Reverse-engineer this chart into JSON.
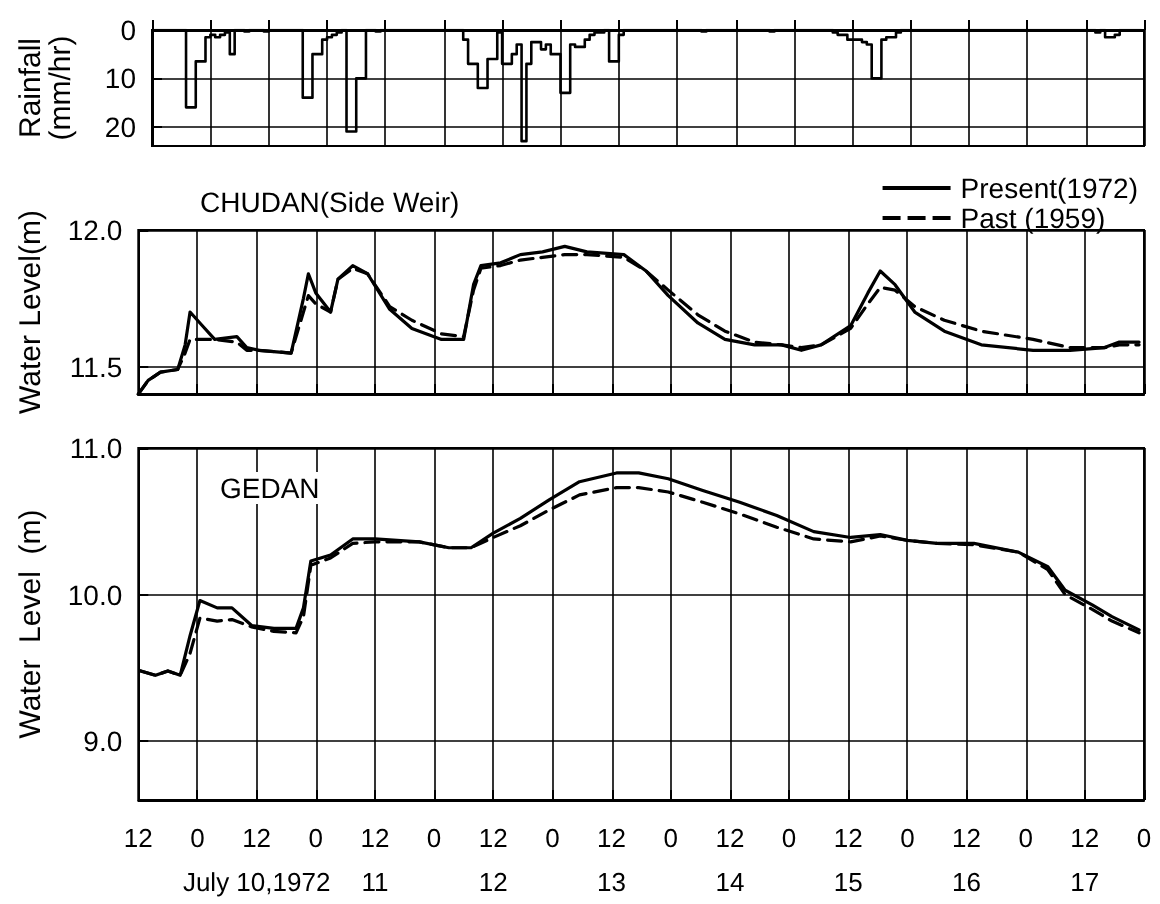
{
  "chart_data": [
    {
      "type": "step",
      "ylabel": "Rainfall\n(mm/hr)",
      "color": "#000000",
      "tick_labels": "y",
      "grid": true,
      "ylim": [
        24,
        0
      ],
      "yticks": [
        0,
        10,
        20
      ],
      "categories": [
        null,
        null,
        null,
        null,
        null,
        null,
        null,
        null,
        null,
        null,
        null,
        null,
        null,
        null,
        null,
        null,
        null,
        null,
        null,
        null,
        null,
        null,
        null,
        null,
        null,
        null,
        null,
        null,
        null,
        null,
        null,
        null,
        null,
        null,
        null,
        null,
        null,
        null,
        null,
        null,
        null,
        null,
        null,
        null,
        null,
        null,
        null,
        null,
        null,
        null,
        null,
        null,
        null,
        null,
        null,
        null,
        null,
        null,
        null,
        null,
        null,
        null,
        null,
        null,
        null,
        null,
        null,
        null,
        null,
        null,
        null,
        null,
        null,
        null,
        null,
        null,
        null,
        null,
        null,
        null,
        null,
        null,
        null,
        null,
        null,
        null,
        null,
        null,
        null,
        null,
        null,
        null,
        null,
        null,
        null,
        null,
        null,
        null,
        null,
        null,
        null,
        null,
        null,
        null,
        null,
        null,
        null,
        null,
        null,
        null,
        null,
        null,
        null,
        null,
        null,
        null,
        null,
        null,
        null,
        null,
        null,
        null,
        null,
        null,
        null,
        null,
        null,
        null,
        null,
        null,
        null,
        null,
        null,
        null,
        null,
        null,
        null,
        null,
        null,
        null,
        null,
        null,
        null,
        null,
        null,
        null,
        null,
        null,
        null,
        null,
        null,
        null,
        null,
        null,
        null,
        null,
        null,
        null,
        null,
        null,
        null,
        null,
        null,
        null,
        null,
        null,
        null,
        null,
        null,
        null,
        null,
        null,
        null,
        null,
        null,
        null,
        null,
        null,
        null,
        null,
        null,
        null,
        null,
        null,
        null,
        null,
        null,
        null,
        null,
        null,
        null,
        null,
        null,
        null,
        null,
        null,
        null,
        null,
        null,
        null,
        null,
        null,
        null,
        null
      ],
      "values": [
        0,
        0,
        0,
        0,
        0,
        0,
        0,
        16,
        16,
        6.5,
        6.5,
        1.5,
        1,
        1.5,
        1,
        0.5,
        5,
        0,
        0,
        0.3,
        0,
        0,
        0,
        0.3,
        0,
        0,
        0,
        0,
        0,
        0,
        0,
        14,
        14,
        5,
        5,
        2,
        1.5,
        1,
        0.5,
        0,
        21,
        21,
        10,
        10,
        0,
        0,
        0.3,
        0,
        0,
        0,
        0,
        0,
        0,
        0,
        0,
        0,
        0,
        0,
        0,
        0,
        0,
        0,
        0,
        0,
        2,
        7,
        7,
        12,
        12,
        6,
        6,
        0.5,
        7,
        7,
        5,
        3,
        23,
        7,
        2.5,
        2.5,
        4,
        3,
        5,
        5,
        13,
        13,
        3,
        3.5,
        3.5,
        2,
        1,
        0.5,
        0.5,
        0,
        6.5,
        6.5,
        1,
        0,
        0,
        0,
        0,
        0,
        0,
        0,
        0,
        0,
        0,
        0,
        0,
        0,
        0,
        0,
        0,
        0.3,
        0,
        0,
        0,
        0,
        0,
        0,
        0,
        0,
        0,
        0,
        0,
        0,
        0,
        0.3,
        0,
        0,
        0,
        0,
        0,
        0,
        0,
        0,
        0,
        0,
        0,
        0,
        0.5,
        1,
        1,
        2,
        2,
        2,
        2.5,
        3,
        10,
        10,
        2,
        1.5,
        1.5,
        0.5,
        0,
        0,
        0,
        0,
        0,
        0,
        0,
        0,
        0,
        0,
        0,
        0,
        0,
        0,
        0,
        0,
        0,
        0,
        0,
        0,
        0,
        0,
        0,
        0,
        0,
        0,
        0,
        0,
        0,
        0,
        0,
        0,
        0,
        0,
        0,
        0,
        0,
        0,
        0,
        0,
        0.5,
        0,
        1.5,
        1.5,
        1,
        0,
        0,
        0,
        0,
        0
      ]
    },
    {
      "type": "line",
      "title": "CHUDAN(Side Weir)",
      "ylabel": "Water Level(m)",
      "legend": "top right",
      "marker": "none",
      "tick_labels": "y",
      "grid": true,
      "xlim": [
        "1972-07-09T12:00",
        "1972-07-18T00:00"
      ],
      "ylim": [
        11.4,
        12.0
      ],
      "yticks": [
        {
          "value": 11.5,
          "label": "11.5"
        },
        {
          "value": 12,
          "label": "12.0"
        }
      ],
      "xticks": [
        "1972-07-09T12:00",
        "1972-07-10T00:00",
        "1972-07-10T12:00",
        "1972-07-11T00:00",
        "1972-07-11T12:00",
        "1972-07-12T00:00",
        "1972-07-12T12:00",
        "1972-07-13T00:00",
        "1972-07-13T12:00",
        "1972-07-14T00:00",
        "1972-07-14T12:00",
        "1972-07-15T00:00",
        "1972-07-15T12:00",
        "1972-07-16T00:00",
        "1972-07-16T12:00",
        "1972-07-17T00:00",
        "1972-07-17T12:00",
        "1972-07-18T00:00"
      ],
      "x": [
        "1972-07-09T12:00",
        "1972-07-09T14:00",
        "1972-07-09T16:30",
        "1972-07-09T20:00",
        "1972-07-09T21:30",
        "1972-07-09T22:30",
        "1972-07-10T01:00",
        "1972-07-10T03:30",
        "1972-07-10T08:00",
        "1972-07-10T10:00",
        "1972-07-10T12:30",
        "1972-07-10T19:00",
        "1972-07-10T21:30",
        "1972-07-10T22:30",
        "1972-07-11T00:00",
        "1972-07-11T03:00",
        "1972-07-11T04:30",
        "1972-07-11T07:30",
        "1972-07-11T10:30",
        "1972-07-11T15:00",
        "1972-07-11T19:30",
        "1972-07-12T01:30",
        "1972-07-12T06:00",
        "1972-07-12T08:00",
        "1972-07-12T09:30",
        "1972-07-12T13:30",
        "1972-07-12T17:30",
        "1972-07-12T22:00",
        "1972-07-13T02:30",
        "1972-07-13T07:00",
        "1972-07-13T14:30",
        "1972-07-13T19:00",
        "1972-07-13T23:30",
        "1972-07-14T05:30",
        "1972-07-14T11:00",
        "1972-07-14T17:00",
        "1972-07-14T22:30",
        "1972-07-15T02:30",
        "1972-07-15T06:30",
        "1972-07-15T12:30",
        "1972-07-15T16:00",
        "1972-07-15T18:30",
        "1972-07-15T21:30",
        "1972-07-16T01:30",
        "1972-07-16T07:30",
        "1972-07-16T15:00",
        "1972-07-17T01:30",
        "1972-07-17T09:00",
        "1972-07-17T16:00",
        "1972-07-17T19:00",
        "1972-07-17T23:00"
      ],
      "series": [
        {
          "name": "Present(1972)",
          "color": "#000000",
          "line_style": "solid",
          "values": [
            11.4,
            11.45,
            11.48,
            11.49,
            11.58,
            11.7,
            11.65,
            11.6,
            11.61,
            11.57,
            11.56,
            11.55,
            11.75,
            11.84,
            11.77,
            11.7,
            11.82,
            11.87,
            11.84,
            11.71,
            11.64,
            11.6,
            11.6,
            11.8,
            11.87,
            11.88,
            11.91,
            11.92,
            11.94,
            11.92,
            11.91,
            11.85,
            11.76,
            11.66,
            11.6,
            11.58,
            11.58,
            11.56,
            11.58,
            11.65,
            11.77,
            11.85,
            11.8,
            11.7,
            11.63,
            11.58,
            11.56,
            11.56,
            11.57,
            11.59,
            11.59
          ]
        },
        {
          "name": "Past (1959)",
          "color": "#000000",
          "line_style": "dashed",
          "values": [
            11.4,
            11.45,
            11.48,
            11.49,
            11.55,
            11.6,
            11.6,
            11.6,
            11.59,
            11.56,
            11.56,
            11.55,
            11.7,
            11.76,
            11.73,
            11.7,
            11.82,
            11.86,
            11.84,
            11.72,
            11.67,
            11.62,
            11.61,
            11.78,
            11.86,
            11.87,
            11.89,
            11.9,
            11.91,
            11.91,
            11.9,
            11.85,
            11.78,
            11.69,
            11.63,
            11.59,
            11.58,
            11.57,
            11.58,
            11.64,
            11.73,
            11.79,
            11.78,
            11.72,
            11.67,
            11.63,
            11.6,
            11.57,
            11.57,
            11.58,
            11.58
          ]
        }
      ]
    },
    {
      "type": "line",
      "title": "GEDAN",
      "ylabel": "Water  Level  (m)",
      "marker": "none",
      "grid": true,
      "xlim": [
        "1972-07-09T12:00",
        "1972-07-18T00:00"
      ],
      "ylim": [
        8.6,
        11.0
      ],
      "yticks": [
        {
          "value": 9,
          "label": "9.0"
        },
        {
          "value": 10,
          "label": "10.0"
        },
        {
          "value": 11,
          "label": "11.0"
        }
      ],
      "xticks": [
        {
          "value": "1972-07-09T12:00",
          "label": "12"
        },
        {
          "value": "1972-07-10T00:00",
          "label": "0"
        },
        {
          "value": "1972-07-10T12:00",
          "label": "12\nJuly 10,1972"
        },
        {
          "value": "1972-07-11T00:00",
          "label": "0"
        },
        {
          "value": "1972-07-11T12:00",
          "label": "12\n11"
        },
        {
          "value": "1972-07-12T00:00",
          "label": "0"
        },
        {
          "value": "1972-07-12T12:00",
          "label": "12\n12"
        },
        {
          "value": "1972-07-13T00:00",
          "label": "0"
        },
        {
          "value": "1972-07-13T12:00",
          "label": "12\n13"
        },
        {
          "value": "1972-07-14T00:00",
          "label": "0"
        },
        {
          "value": "1972-07-14T12:00",
          "label": "12\n14"
        },
        {
          "value": "1972-07-15T00:00",
          "label": "0"
        },
        {
          "value": "1972-07-15T12:00",
          "label": "12\n15"
        },
        {
          "value": "1972-07-16T00:00",
          "label": "0"
        },
        {
          "value": "1972-07-16T12:00",
          "label": "12\n16"
        },
        {
          "value": "1972-07-17T00:00",
          "label": "0"
        },
        {
          "value": "1972-07-17T12:00",
          "label": "12\n17"
        },
        {
          "value": "1972-07-18T00:00",
          "label": "0"
        }
      ],
      "x": [
        "1972-07-09T12:30",
        "1972-07-09T15:30",
        "1972-07-09T18:00",
        "1972-07-09T20:30",
        "1972-07-09T22:30",
        "1972-07-10T00:30",
        "1972-07-10T04:00",
        "1972-07-10T07:00",
        "1972-07-10T11:00",
        "1972-07-10T15:30",
        "1972-07-10T20:00",
        "1972-07-10T21:30",
        "1972-07-10T23:00",
        "1972-07-11T03:00",
        "1972-07-11T07:30",
        "1972-07-11T12:00",
        "1972-07-11T21:00",
        "1972-07-12T03:00",
        "1972-07-12T07:30",
        "1972-07-12T12:00",
        "1972-07-12T17:30",
        "1972-07-12T23:30",
        "1972-07-13T05:30",
        "1972-07-13T13:00",
        "1972-07-13T17:30",
        "1972-07-13T23:30",
        "1972-07-14T06:30",
        "1972-07-14T14:00",
        "1972-07-14T21:30",
        "1972-07-15T05:00",
        "1972-07-15T12:30",
        "1972-07-15T18:30",
        "1972-07-16T00:00",
        "1972-07-16T06:00",
        "1972-07-16T13:30",
        "1972-07-16T22:30",
        "1972-07-17T04:30",
        "1972-07-17T08:00",
        "1972-07-17T13:30",
        "1972-07-17T17:30",
        "1972-07-17T23:00"
      ],
      "series": [
        {
          "color": "#000000",
          "line_style": "solid",
          "values": [
            9.48,
            9.45,
            9.48,
            9.45,
            9.72,
            9.96,
            9.91,
            9.91,
            9.79,
            9.77,
            9.77,
            9.91,
            10.23,
            10.27,
            10.38,
            10.38,
            10.36,
            10.32,
            10.32,
            10.42,
            10.52,
            10.65,
            10.77,
            10.83,
            10.83,
            10.79,
            10.71,
            10.63,
            10.54,
            10.43,
            10.39,
            10.41,
            10.37,
            10.35,
            10.35,
            10.29,
            10.19,
            10.03,
            9.93,
            9.85,
            9.76
          ]
        },
        {
          "color": "#000000",
          "line_style": "dashed",
          "values": [
            9.48,
            9.45,
            9.48,
            9.45,
            9.6,
            9.84,
            9.82,
            9.83,
            9.78,
            9.75,
            9.74,
            9.85,
            10.2,
            10.25,
            10.35,
            10.36,
            10.36,
            10.32,
            10.32,
            10.39,
            10.47,
            10.58,
            10.68,
            10.73,
            10.73,
            10.7,
            10.63,
            10.55,
            10.46,
            10.38,
            10.36,
            10.4,
            10.37,
            10.35,
            10.34,
            10.29,
            10.17,
            10,
            9.9,
            9.82,
            9.74
          ]
        }
      ]
    }
  ]
}
